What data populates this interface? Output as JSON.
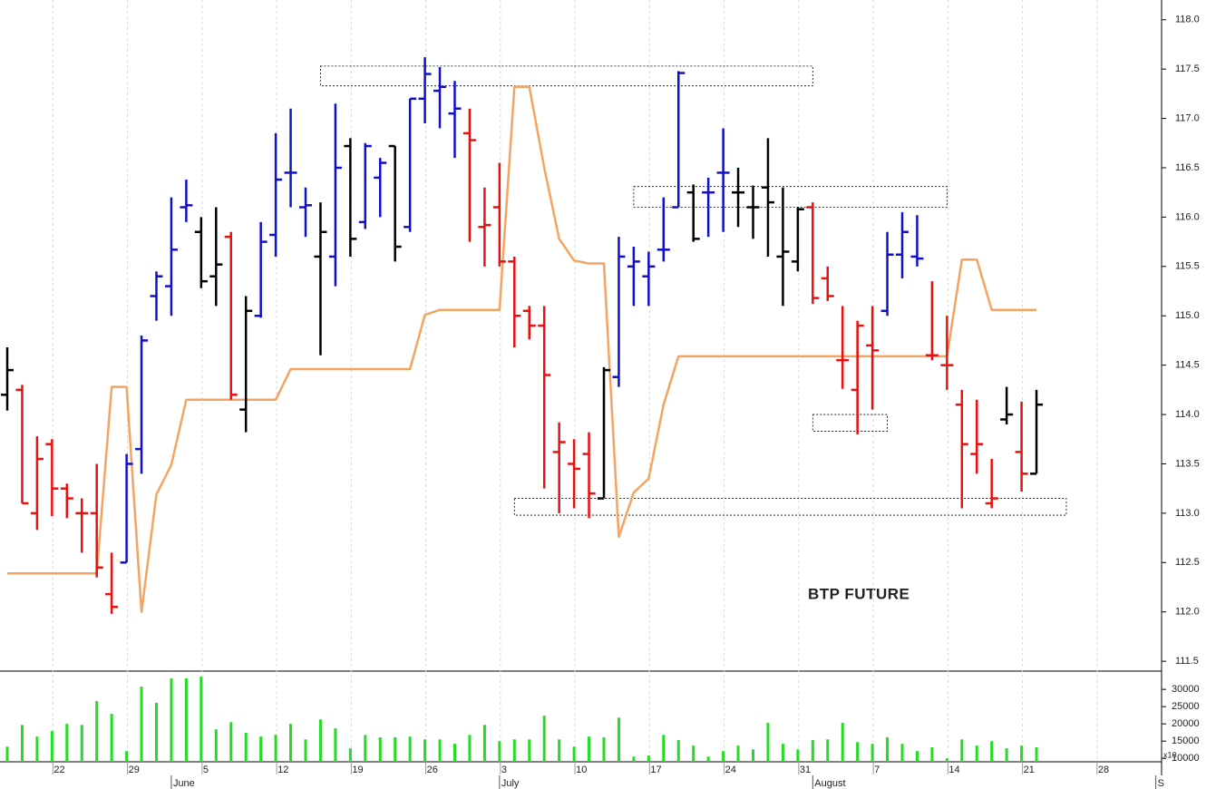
{
  "chart_data": {
    "type": "ohlc",
    "annotation": "BTP FUTURE",
    "categories": [
      null,
      null,
      null,
      "22",
      null,
      null,
      null,
      null,
      "29",
      null,
      null,
      null,
      null,
      "5",
      null,
      null,
      null,
      null,
      "12",
      null,
      null,
      null,
      null,
      "19",
      null,
      null,
      null,
      null,
      "26",
      null,
      null,
      null,
      null,
      "3",
      null,
      null,
      null,
      null,
      "10",
      null,
      null,
      null,
      null,
      "17",
      null,
      null,
      null,
      null,
      "24",
      null,
      null,
      null,
      null,
      "31",
      null,
      null,
      null,
      null,
      "7",
      null,
      null,
      null,
      null,
      "14",
      null,
      null,
      null,
      null,
      "21",
      null,
      null,
      null,
      null,
      "28",
      null,
      null,
      null,
      null
    ],
    "months": [
      {
        "label": "June",
        "index": 11
      },
      {
        "label": "July",
        "index": 33
      },
      {
        "label": "August",
        "index": 54
      },
      {
        "label": "S",
        "index": 77
      }
    ],
    "open": [
      114.2,
      114.25,
      113.0,
      113.7,
      113.25,
      113.0,
      113.0,
      112.18,
      112.5,
      113.65,
      115.2,
      115.3,
      116.1,
      115.85,
      115.4,
      115.8,
      114.05,
      115.0,
      115.82,
      116.45,
      116.1,
      115.6,
      115.6,
      116.72,
      115.95,
      116.4,
      116.72,
      115.9,
      117.2,
      117.28,
      117.05,
      116.85,
      115.9,
      116.1,
      115.55,
      115.05,
      114.9,
      113.62,
      113.5,
      113.6,
      113.15,
      114.38,
      115.5,
      115.4,
      115.67,
      116.1,
      116.25,
      116.25,
      116.45,
      116.25,
      116.1,
      116.3,
      115.6,
      115.55,
      116.1,
      115.38,
      114.55,
      114.25,
      114.7,
      115.05,
      115.62,
      115.6,
      114.6,
      114.5,
      114.1,
      113.6,
      113.1,
      113.95,
      113.62,
      113.4,
      null,
      null,
      null,
      null,
      null,
      null,
      null,
      null
    ],
    "high": [
      114.68,
      114.3,
      113.78,
      113.75,
      113.3,
      113.15,
      113.5,
      112.6,
      113.6,
      114.8,
      115.45,
      116.2,
      116.38,
      116.0,
      116.1,
      115.85,
      115.2,
      115.95,
      116.85,
      117.1,
      116.3,
      116.15,
      117.15,
      116.8,
      116.75,
      116.6,
      116.72,
      117.2,
      117.62,
      117.52,
      117.38,
      117.1,
      116.3,
      116.55,
      115.6,
      115.1,
      115.1,
      113.92,
      113.75,
      113.82,
      114.48,
      115.8,
      115.7,
      115.65,
      116.2,
      117.48,
      116.33,
      116.4,
      116.9,
      116.5,
      116.32,
      116.8,
      116.3,
      116.1,
      116.15,
      115.5,
      115.1,
      114.95,
      115.1,
      115.85,
      116.05,
      116.02,
      115.35,
      115.0,
      114.25,
      114.15,
      113.55,
      114.28,
      114.13,
      114.25,
      null,
      null,
      null,
      null,
      null,
      null,
      null,
      null
    ],
    "low": [
      114.04,
      113.1,
      112.83,
      112.97,
      112.95,
      112.6,
      112.35,
      111.98,
      112.5,
      113.4,
      114.95,
      115.0,
      115.95,
      115.28,
      115.1,
      114.15,
      113.82,
      114.98,
      115.6,
      116.1,
      115.8,
      114.6,
      115.3,
      115.6,
      115.88,
      116.0,
      115.55,
      115.85,
      116.95,
      116.9,
      116.6,
      115.75,
      115.5,
      115.5,
      114.68,
      114.76,
      113.25,
      113.0,
      113.05,
      112.95,
      113.15,
      114.28,
      115.1,
      115.1,
      115.55,
      116.1,
      115.75,
      115.8,
      115.85,
      115.9,
      115.78,
      115.6,
      115.1,
      115.45,
      115.12,
      115.15,
      114.26,
      113.8,
      114.05,
      115.0,
      115.38,
      115.5,
      114.55,
      114.25,
      113.05,
      113.4,
      113.05,
      113.9,
      113.22,
      113.4,
      null,
      null,
      null,
      null,
      null,
      null,
      null,
      null
    ],
    "close": [
      114.45,
      113.1,
      113.55,
      113.25,
      113.15,
      113.0,
      112.45,
      112.05,
      113.5,
      114.75,
      115.4,
      115.67,
      116.12,
      115.35,
      115.52,
      114.2,
      115.05,
      115.75,
      116.38,
      116.45,
      116.12,
      115.85,
      116.5,
      115.78,
      116.72,
      116.55,
      115.7,
      117.2,
      117.45,
      117.32,
      117.1,
      116.78,
      115.92,
      115.55,
      115.0,
      114.9,
      114.4,
      113.72,
      113.45,
      113.2,
      114.45,
      115.6,
      115.55,
      115.5,
      115.67,
      117.46,
      115.78,
      116.25,
      116.45,
      116.25,
      116.1,
      116.15,
      115.65,
      116.08,
      115.18,
      115.2,
      114.55,
      114.9,
      114.65,
      115.62,
      115.85,
      115.58,
      114.6,
      114.5,
      113.7,
      113.7,
      113.15,
      114.0,
      113.4,
      114.1,
      null,
      null,
      null,
      null,
      null,
      null,
      null,
      null
    ],
    "colors": [
      "#000",
      "#e81010",
      "#e81010",
      "#e81010",
      "#e81010",
      "#e81010",
      "#e81010",
      "#e81010",
      "#1010c8",
      "#1010c8",
      "#1010c8",
      "#1010c8",
      "#1010c8",
      "#000",
      "#000",
      "#e81010",
      "#000",
      "#1010c8",
      "#1010c8",
      "#1010c8",
      "#1010c8",
      "#000",
      "#1010c8",
      "#000",
      "#1010c8",
      "#1010c8",
      "#000",
      "#1010c8",
      "#1010c8",
      "#1010c8",
      "#1010c8",
      "#e81010",
      "#e81010",
      "#e81010",
      "#e81010",
      "#e81010",
      "#e81010",
      "#e81010",
      "#e81010",
      "#e81010",
      "#000",
      "#1010c8",
      "#1010c8",
      "#1010c8",
      "#1010c8",
      "#1010c8",
      "#000",
      "#1010c8",
      "#1010c8",
      "#000",
      "#000",
      "#000",
      "#000",
      "#000",
      "#e81010",
      "#e81010",
      "#e81010",
      "#e81010",
      "#e81010",
      "#1010c8",
      "#1010c8",
      "#1010c8",
      "#e81010",
      "#e81010",
      "#e81010",
      "#e81010",
      "#e81010",
      "#000",
      "#e81010",
      "#000",
      null,
      null,
      null,
      null,
      null,
      null,
      null,
      null
    ],
    "line": {
      "color": "#f4a460",
      "values": [
        112.39,
        112.39,
        112.39,
        112.39,
        112.39,
        112.39,
        112.39,
        114.28,
        114.28,
        112.0,
        113.19,
        113.49,
        114.15,
        114.15,
        114.15,
        114.15,
        114.15,
        114.15,
        114.15,
        114.46,
        114.46,
        114.46,
        114.46,
        114.46,
        114.46,
        114.46,
        114.46,
        114.46,
        115.01,
        115.06,
        115.06,
        115.06,
        115.06,
        115.06,
        117.32,
        117.32,
        116.5,
        115.78,
        115.56,
        115.53,
        115.53,
        112.76,
        113.21,
        113.35,
        114.1,
        114.59,
        114.59,
        114.59,
        114.59,
        114.59,
        114.59,
        114.59,
        114.59,
        114.59,
        114.59,
        114.59,
        114.59,
        114.59,
        114.59,
        114.59,
        114.59,
        114.59,
        114.59,
        114.59,
        115.57,
        115.57,
        115.06,
        115.06,
        115.06,
        115.06,
        null,
        null,
        null,
        null,
        null,
        null,
        null,
        null
      ]
    },
    "zones": [
      {
        "from": 21,
        "to": 54,
        "top": 117.53,
        "bottom": 117.33
      },
      {
        "from": 42,
        "to": 63,
        "top": 116.31,
        "bottom": 116.1
      },
      {
        "from": 54,
        "to": 59,
        "top": 114.0,
        "bottom": 113.83
      },
      {
        "from": 34,
        "to": 71,
        "top": 113.15,
        "bottom": 112.98
      }
    ],
    "ylim": [
      111.4,
      118.2
    ],
    "yticks": [
      111.5,
      {
        "value": 112,
        "label": "112.0"
      },
      112.5,
      {
        "value": 113,
        "label": "113.0"
      },
      113.5,
      {
        "value": 114,
        "label": "114.0"
      },
      114.5,
      {
        "value": 115,
        "label": "115.0"
      },
      115.5,
      {
        "value": 116,
        "label": "116.0"
      },
      116.5,
      {
        "value": 117,
        "label": "117.0"
      },
      117.5,
      {
        "value": 118,
        "label": "118.0"
      }
    ],
    "volume": {
      "color": "#22dd22",
      "unit": "x10",
      "ylim": [
        9000,
        35300
      ],
      "yticks": [
        10000,
        15000,
        20000,
        25000,
        30000
      ],
      "values": [
        13400,
        19700,
        16300,
        17900,
        20000,
        19700,
        26600,
        22900,
        12100,
        30800,
        26100,
        33200,
        33200,
        33700,
        18400,
        20500,
        17400,
        16300,
        16800,
        20000,
        15500,
        21300,
        18700,
        12900,
        16800,
        16100,
        16100,
        16300,
        15500,
        15500,
        14200,
        16800,
        19700,
        15000,
        15500,
        15500,
        22400,
        15500,
        13400,
        16300,
        16100,
        21800,
        10500,
        10800,
        16800,
        15300,
        13700,
        10500,
        12100,
        13700,
        12600,
        20300,
        14200,
        12600,
        15300,
        15500,
        20300,
        14700,
        14200,
        16100,
        14200,
        12100,
        13200,
        10000,
        15500,
        13700,
        15000,
        12900,
        13700,
        13200,
        null,
        null,
        null,
        null,
        null,
        null,
        null,
        null
      ]
    }
  }
}
